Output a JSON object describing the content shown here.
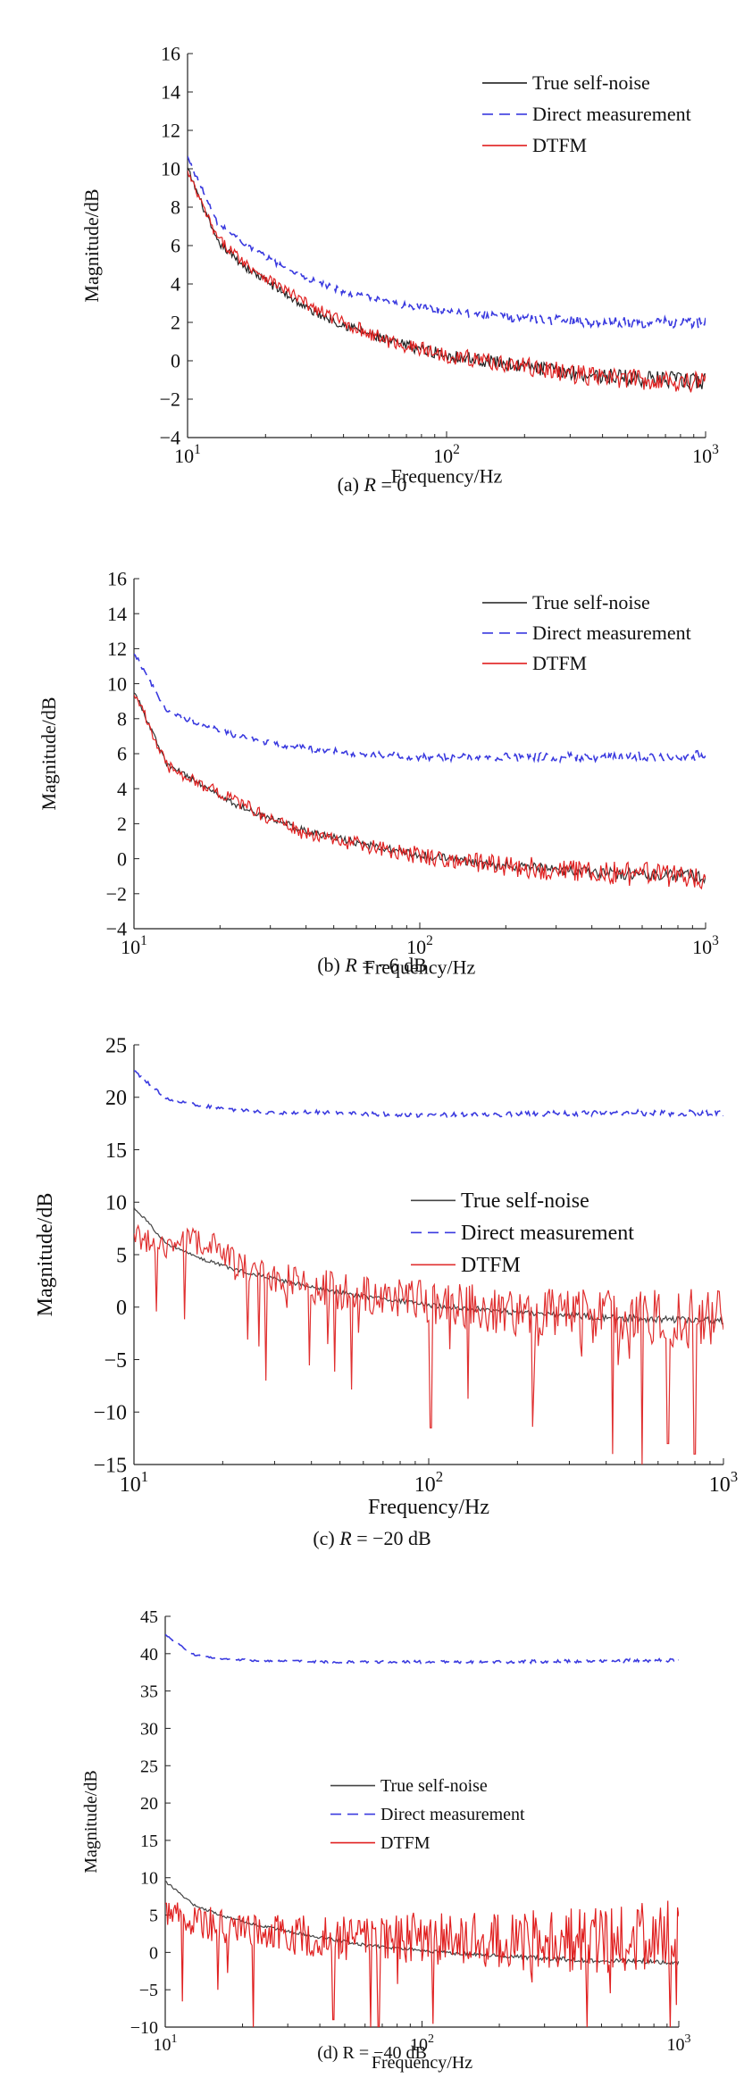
{
  "chart_data": [
    {
      "type": "line",
      "caption_prefix": "(a) ",
      "caption_var": "R",
      "caption_rest": " = 0",
      "xlabel": "Frequency/Hz",
      "ylabel": "Magnitude/dB",
      "xscale": "log",
      "xlim": [
        10,
        1000
      ],
      "ylim": [
        -4,
        16
      ],
      "yticks": [
        -4,
        -2,
        0,
        2,
        4,
        6,
        8,
        10,
        12,
        14,
        16
      ],
      "xticks": [
        {
          "base": "10",
          "exp": "1"
        },
        {
          "base": "10",
          "exp": "2"
        },
        {
          "base": "10",
          "exp": "3"
        }
      ],
      "legend": [
        "True self-noise",
        "Direct measurement",
        "DTFM"
      ],
      "legend_position": "top-right",
      "series": [
        {
          "name": "True self-noise",
          "color": "#222222",
          "dash": "solid",
          "trend": [
            [
              10,
              10.0
            ],
            [
              13,
              6.2
            ],
            [
              17,
              4.8
            ],
            [
              22,
              3.8
            ],
            [
              30,
              2.6
            ],
            [
              40,
              1.9
            ],
            [
              60,
              1.0
            ],
            [
              100,
              0.3
            ],
            [
              200,
              -0.3
            ],
            [
              400,
              -0.8
            ],
            [
              1000,
              -1.1
            ]
          ],
          "noise": 0.45
        },
        {
          "name": "Direct measurement",
          "color": "#3a3adf",
          "dash": "dashed",
          "trend": [
            [
              10,
              10.6
            ],
            [
              13,
              7.2
            ],
            [
              17,
              6.0
            ],
            [
              22,
              5.1
            ],
            [
              30,
              4.2
            ],
            [
              40,
              3.6
            ],
            [
              60,
              3.0
            ],
            [
              100,
              2.6
            ],
            [
              200,
              2.2
            ],
            [
              400,
              2.0
            ],
            [
              1000,
              2.0
            ]
          ],
          "noise": 0.3
        },
        {
          "name": "DTFM",
          "color": "#e02020",
          "dash": "solid",
          "trend": [
            [
              10,
              9.8
            ],
            [
              13,
              6.4
            ],
            [
              17,
              5.0
            ],
            [
              22,
              4.0
            ],
            [
              30,
              2.8
            ],
            [
              40,
              2.0
            ],
            [
              60,
              1.0
            ],
            [
              100,
              0.3
            ],
            [
              200,
              -0.3
            ],
            [
              400,
              -0.9
            ],
            [
              1000,
              -1.1
            ]
          ],
          "noise": 0.6
        }
      ]
    },
    {
      "type": "line",
      "caption_prefix": "(b) ",
      "caption_var": "R",
      "caption_rest": " = −6 dB",
      "xlabel": "Frequency/Hz",
      "ylabel": "Magnitude/dB",
      "xscale": "log",
      "xlim": [
        10,
        1000
      ],
      "ylim": [
        -4,
        16
      ],
      "yticks": [
        -4,
        -2,
        0,
        2,
        4,
        6,
        8,
        10,
        12,
        14,
        16
      ],
      "xticks": [
        {
          "base": "10",
          "exp": "1"
        },
        {
          "base": "10",
          "exp": "2"
        },
        {
          "base": "10",
          "exp": "3"
        }
      ],
      "legend": [
        "True self-noise",
        "Direct measurement",
        "DTFM"
      ],
      "legend_position": "top-right",
      "series": [
        {
          "name": "True self-noise",
          "color": "#333333",
          "dash": "solid",
          "trend": [
            [
              10,
              9.6
            ],
            [
              13,
              5.4
            ],
            [
              17,
              4.3
            ],
            [
              22,
              3.2
            ],
            [
              30,
              2.3
            ],
            [
              40,
              1.6
            ],
            [
              60,
              0.9
            ],
            [
              100,
              0.2
            ],
            [
              200,
              -0.4
            ],
            [
              400,
              -0.8
            ],
            [
              1000,
              -1.0
            ]
          ],
          "noise": 0.35
        },
        {
          "name": "Direct measurement",
          "color": "#3a3adf",
          "dash": "dashed",
          "trend": [
            [
              10,
              11.8
            ],
            [
              13,
              8.4
            ],
            [
              17,
              7.7
            ],
            [
              22,
              7.1
            ],
            [
              30,
              6.6
            ],
            [
              40,
              6.3
            ],
            [
              60,
              6.0
            ],
            [
              100,
              5.8
            ],
            [
              200,
              5.8
            ],
            [
              400,
              5.8
            ],
            [
              1000,
              5.9
            ]
          ],
          "noise": 0.3
        },
        {
          "name": "DTFM",
          "color": "#e02020",
          "dash": "solid",
          "trend": [
            [
              10,
              9.6
            ],
            [
              13,
              5.3
            ],
            [
              17,
              4.3
            ],
            [
              22,
              3.4
            ],
            [
              30,
              2.3
            ],
            [
              40,
              1.4
            ],
            [
              60,
              0.8
            ],
            [
              100,
              0.2
            ],
            [
              200,
              -0.4
            ],
            [
              400,
              -0.8
            ],
            [
              1000,
              -1.0
            ]
          ],
          "noise": 0.75
        }
      ]
    },
    {
      "type": "line",
      "caption_prefix": "(c) ",
      "caption_var": "R",
      "caption_rest": " = −20 dB",
      "xlabel": "Frequency/Hz",
      "ylabel": "Magnitude/dB",
      "xscale": "log",
      "xlim": [
        10,
        1000
      ],
      "ylim": [
        -15,
        25
      ],
      "yticks": [
        -15,
        -10,
        -5,
        0,
        5,
        10,
        15,
        20,
        25
      ],
      "xticks": [
        {
          "base": "10",
          "exp": "1"
        },
        {
          "base": "10",
          "exp": "2"
        },
        {
          "base": "10",
          "exp": "3"
        }
      ],
      "legend": [
        "True self-noise",
        "Direct measurement",
        "DTFM"
      ],
      "legend_position": "center-right",
      "series": [
        {
          "name": "True self-noise",
          "color": "#444444",
          "dash": "solid",
          "trend": [
            [
              10,
              9.5
            ],
            [
              13,
              6.0
            ],
            [
              17,
              4.6
            ],
            [
              22,
              3.6
            ],
            [
              30,
              2.7
            ],
            [
              40,
              1.9
            ],
            [
              60,
              1.0
            ],
            [
              100,
              0.2
            ],
            [
              200,
              -0.5
            ],
            [
              400,
              -1.0
            ],
            [
              1000,
              -1.3
            ]
          ],
          "noise": 0.35
        },
        {
          "name": "Direct measurement",
          "color": "#3a3adf",
          "dash": "dashed",
          "trend": [
            [
              10,
              22.5
            ],
            [
              13,
              19.8
            ],
            [
              17,
              19.2
            ],
            [
              22,
              18.8
            ],
            [
              30,
              18.5
            ],
            [
              40,
              18.6
            ],
            [
              60,
              18.4
            ],
            [
              100,
              18.3
            ],
            [
              200,
              18.4
            ],
            [
              400,
              18.5
            ],
            [
              1000,
              18.5
            ]
          ],
          "noise": 0.3
        },
        {
          "name": "DTFM",
          "color": "#e03030",
          "dash": "solid",
          "trend": [
            [
              10,
              7.0
            ],
            [
              13,
              5.5
            ],
            [
              17,
              6.5
            ],
            [
              22,
              4.0
            ],
            [
              30,
              3.0
            ],
            [
              40,
              2.0
            ],
            [
              60,
              1.2
            ],
            [
              100,
              0.5
            ],
            [
              200,
              -0.5
            ],
            [
              400,
              -1.0
            ],
            [
              1000,
              -1.2
            ]
          ],
          "noise": 3.0,
          "dips": [
            [
              28,
              -7
            ],
            [
              102,
              -11.5
            ],
            [
              420,
              -14
            ],
            [
              530,
              -15
            ],
            [
              650,
              -13
            ],
            [
              800,
              -14
            ]
          ]
        }
      ]
    },
    {
      "type": "line",
      "caption_prefix": "(d) R = −40 dB",
      "caption_var": "",
      "caption_rest": "",
      "xlabel": "Frequency/Hz",
      "ylabel": "Magnitude/dB",
      "xscale": "log",
      "xlim": [
        10,
        1000
      ],
      "ylim": [
        -10,
        45
      ],
      "yticks": [
        -10,
        -5,
        0,
        5,
        10,
        15,
        20,
        25,
        30,
        35,
        40,
        45
      ],
      "xticks": [
        {
          "base": "10",
          "exp": "1"
        },
        {
          "base": "10",
          "exp": "2"
        },
        {
          "base": "10",
          "exp": "3"
        }
      ],
      "legend": [
        "True self-noise",
        "Direct measurement",
        "DTFM"
      ],
      "legend_position": "center-right",
      "series": [
        {
          "name": "True self-noise",
          "color": "#444444",
          "dash": "solid",
          "trend": [
            [
              10,
              9.5
            ],
            [
              13,
              6.3
            ],
            [
              17,
              4.8
            ],
            [
              22,
              3.8
            ],
            [
              30,
              2.8
            ],
            [
              40,
              2.0
            ],
            [
              60,
              1.0
            ],
            [
              100,
              0.2
            ],
            [
              200,
              -0.5
            ],
            [
              400,
              -1.0
            ],
            [
              1000,
              -1.3
            ]
          ],
          "noise": 0.35
        },
        {
          "name": "Direct measurement",
          "color": "#3a3adf",
          "dash": "dashed",
          "trend": [
            [
              10,
              42.5
            ],
            [
              13,
              39.8
            ],
            [
              17,
              39.3
            ],
            [
              22,
              39.1
            ],
            [
              30,
              39.0
            ],
            [
              40,
              38.9
            ],
            [
              60,
              38.9
            ],
            [
              100,
              38.9
            ],
            [
              200,
              38.9
            ],
            [
              400,
              39.0
            ],
            [
              1000,
              39.1
            ]
          ],
          "noise": 0.25
        },
        {
          "name": "DTFM",
          "color": "#e02020",
          "dash": "solid",
          "trend": [
            [
              10,
              5.0
            ],
            [
              20,
              3.0
            ],
            [
              40,
              2.0
            ],
            [
              100,
              2.0
            ],
            [
              200,
              1.5
            ],
            [
              400,
              1.5
            ],
            [
              1000,
              2.5
            ]
          ],
          "noise": 5.0,
          "dips": [
            [
              16,
              -5
            ],
            [
              22,
              -10
            ],
            [
              45,
              -9
            ],
            [
              68,
              -10
            ]
          ]
        }
      ]
    }
  ]
}
